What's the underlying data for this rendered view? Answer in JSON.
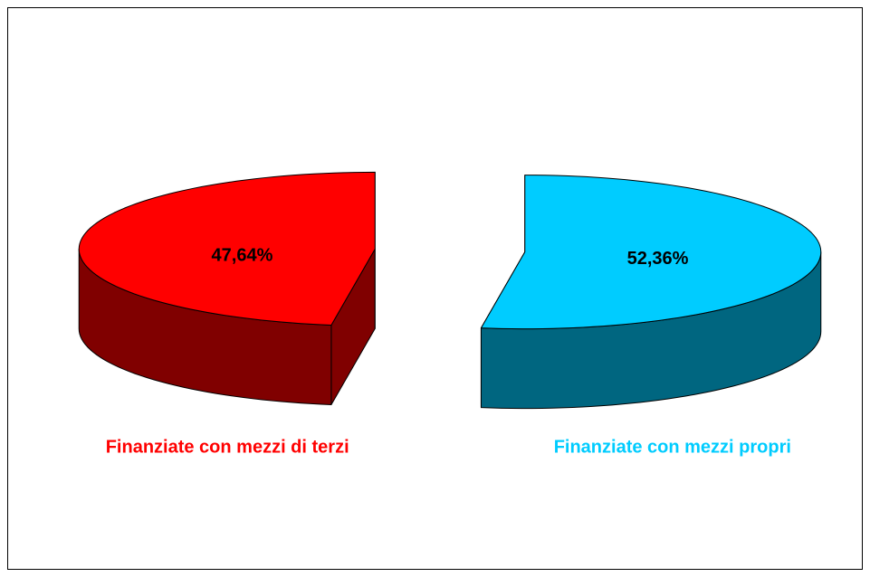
{
  "chart_data": {
    "type": "pie3d",
    "categories": [
      "Finanziate con mezzi di terzi",
      "Finanziate con mezzi propri"
    ],
    "values": [
      47.64,
      52.36
    ],
    "value_labels": [
      "47,64%",
      "52,36%"
    ],
    "colors": [
      "#ff0000",
      "#00ccff"
    ],
    "side_colors": [
      "#800000",
      "#006680"
    ],
    "exploded": true
  }
}
